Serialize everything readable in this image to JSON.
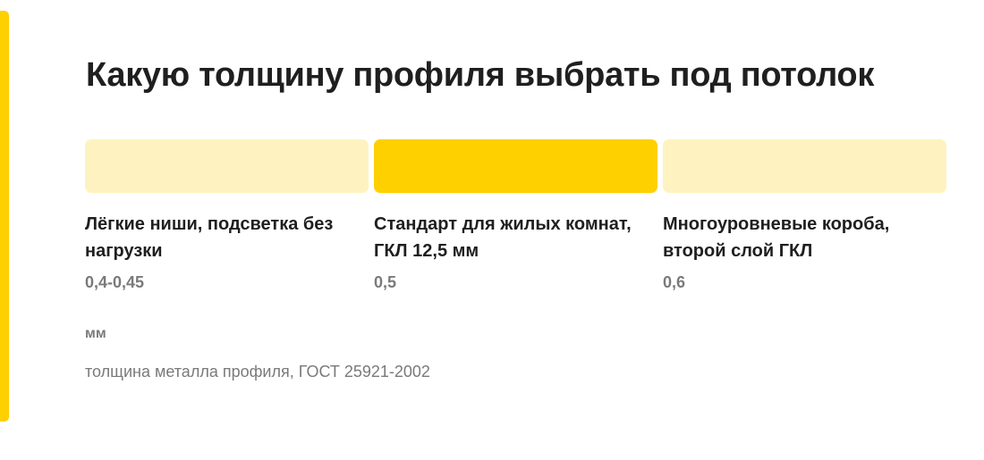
{
  "title": "Какую толщину профиля выбрать под потолок",
  "colors": {
    "accent": "#FFD000",
    "selected": "#FFD000",
    "unselected": "#FEF3C0"
  },
  "options": [
    {
      "label": "Лёгкие ниши, подсветка без нагрузки",
      "value": "0,4-0,45",
      "selected": false
    },
    {
      "label": "Стандарт для жилых комнат, ГКЛ 12,5 мм",
      "value": "0,5",
      "selected": true
    },
    {
      "label": "Многоуровневые короба, второй слой ГКЛ",
      "value": "0,6",
      "selected": false
    }
  ],
  "unit": "мм",
  "caption": "толщина металла профиля, ГОСТ 25921-2002"
}
